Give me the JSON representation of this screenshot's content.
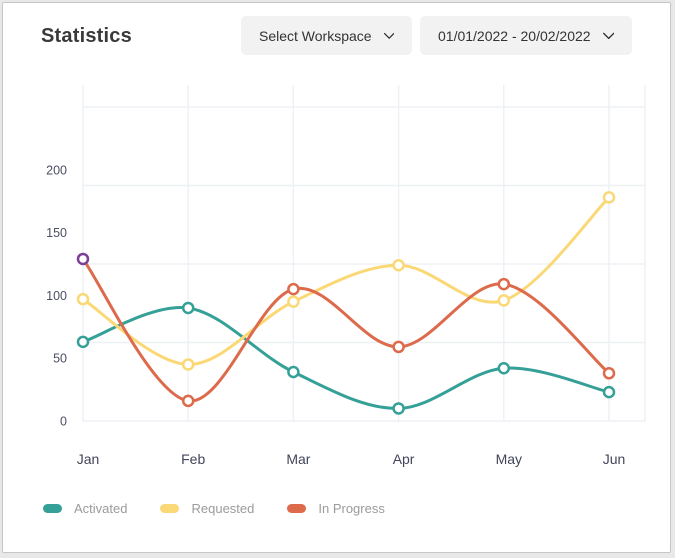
{
  "header": {
    "title": "Statistics",
    "workspace_dropdown_label": "Select Workspace",
    "date_range_label": "01/01/2022 - 20/02/2022"
  },
  "chart_data": {
    "type": "line",
    "title": "Statistics",
    "x_categories": [
      "Jan",
      "Feb",
      "Mar",
      "Apr",
      "May",
      "Jun"
    ],
    "series": [
      {
        "name": "Activated",
        "color": "#35a097",
        "values": [
          63,
          90,
          39,
          10,
          42,
          23
        ]
      },
      {
        "name": "Requested",
        "color": "#fbd876",
        "values": [
          97,
          45,
          95,
          124,
          96,
          178
        ]
      },
      {
        "name": "In Progress",
        "color": "#dc6a4b",
        "values": [
          129,
          16,
          105,
          59,
          109,
          38
        ]
      }
    ],
    "y_ticks": [
      0,
      50,
      100,
      150,
      200
    ],
    "ylim": [
      0,
      250
    ],
    "grid_divisions": 4,
    "grid": true,
    "smooth": true,
    "legend_position": "bottom",
    "highlight_point": {
      "series_index": 2,
      "point_index": 0,
      "ring_color": "#7b3f98"
    },
    "marker_style": {
      "radius": 5,
      "fill": "#ffffff",
      "stroke_width": 2.5
    },
    "colors": {
      "grid_line": "#edf1f6",
      "y_tick_label": "#4b4e63",
      "x_tick_label": "#424559"
    }
  },
  "legend": {
    "items": [
      {
        "label": "Activated",
        "color": "#35a097"
      },
      {
        "label": "Requested",
        "color": "#fbd876"
      },
      {
        "label": "In Progress",
        "color": "#dc6a4b"
      }
    ]
  }
}
